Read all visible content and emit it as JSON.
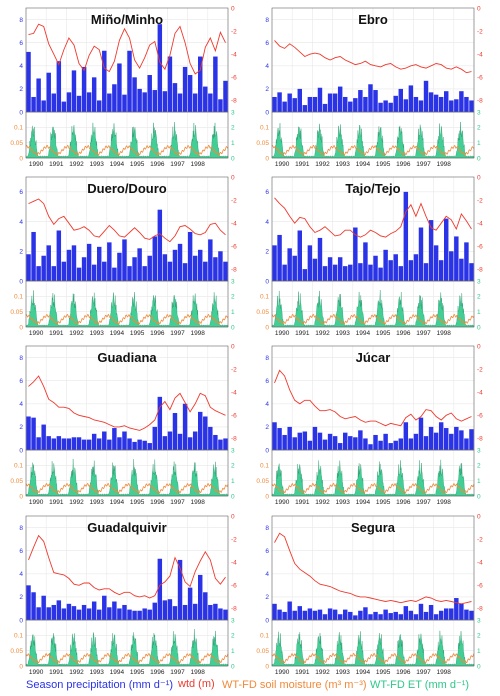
{
  "figure": {
    "colors": {
      "precipitation": "#2a33e6",
      "wtd": "#ee3a2e",
      "soil_moisture": "#f08a3a",
      "et": "#2ec98a",
      "et_dark": "#0f8a5a",
      "grid": "#e8e8e8"
    },
    "legend": {
      "precip": "Season precipitation (mm d⁻¹)",
      "wtd": "wtd (m)",
      "sm": "WT-FD soil moisture (m³ m⁻³)",
      "et": "WT-FD ET (mm d⁻¹)"
    },
    "x_ticks": [
      "1990",
      "1991",
      "1992",
      "1993",
      "1994",
      "1995",
      "1996",
      "1997",
      "1998"
    ]
  },
  "chart_data": [
    {
      "type": "bar",
      "title": "Miño/Minho",
      "precip": [
        5.2,
        1.3,
        2.9,
        1.0,
        3.4,
        1.6,
        4.4,
        0.9,
        1.7,
        3.6,
        1.4,
        3.9,
        1.7,
        3.0,
        1.0,
        5.3,
        1.6,
        2.4,
        4.2,
        1.5,
        5.3,
        3.0,
        2.0,
        1.7,
        3.2,
        1.9,
        7.6,
        1.8,
        4.8,
        2.5,
        1.6,
        3.9,
        3.2,
        1.6,
        4.8,
        2.2,
        1.6,
        4.8,
        1.1,
        2.7
      ],
      "wtd": [
        -2.3,
        -2.2,
        -1.4,
        -1.6,
        -3.1,
        -4.0,
        -4.9,
        -3.6,
        -2.6,
        -3.2,
        -4.8,
        -5.4,
        -4.1,
        -3.3,
        -3.6,
        -5.2,
        -5.5,
        -4.6,
        -2.8,
        -1.8,
        -2.6,
        -4.5,
        -5.2,
        -4.3,
        -3.2,
        -2.9,
        -4.7,
        -5.3,
        -4.1,
        -2.2,
        -1.6,
        -3.0,
        -4.8,
        -5.7,
        -5.4,
        -3.4,
        -2.6,
        -3.7,
        -2.1,
        -3.0
      ],
      "precip_ylim": [
        0,
        9
      ],
      "precip_ticks": [
        0,
        2,
        4,
        6,
        8
      ],
      "wtd_ylim": [
        -9,
        0
      ],
      "wtd_ticks": [
        0,
        -2,
        -4,
        -6,
        -8
      ],
      "sm_ylim": [
        0,
        0.15
      ],
      "sm_ticks": [
        0,
        0.05,
        0.1
      ],
      "et_ylim": [
        0,
        3
      ],
      "et_ticks": [
        0,
        1,
        2,
        3
      ]
    },
    {
      "type": "bar",
      "title": "Ebro",
      "precip": [
        1.3,
        1.7,
        0.9,
        1.6,
        1.2,
        2.0,
        0.6,
        1.3,
        1.3,
        2.1,
        0.7,
        1.6,
        1.6,
        2.2,
        1.3,
        0.9,
        1.2,
        1.9,
        1.3,
        2.4,
        1.9,
        0.8,
        1.0,
        0.8,
        1.4,
        2.0,
        1.1,
        2.3,
        1.3,
        1.0,
        2.7,
        1.7,
        1.5,
        1.3,
        1.8,
        1.0,
        1.1,
        1.8,
        1.3,
        1.0
      ],
      "wtd": [
        -2.8,
        -3.3,
        -3.5,
        -3.1,
        -3.4,
        -3.8,
        -4.2,
        -4.0,
        -3.9,
        -4.0,
        -4.3,
        -4.5,
        -4.3,
        -4.2,
        -4.5,
        -4.7,
        -4.9,
        -4.8,
        -4.6,
        -4.9,
        -5.0,
        -5.1,
        -4.9,
        -4.8,
        -5.1,
        -5.3,
        -5.2,
        -5.0,
        -4.9,
        -5.1,
        -5.2,
        -5.0,
        -4.8,
        -4.9,
        -5.2,
        -5.3,
        -5.1,
        -5.3,
        -5.6,
        -5.5
      ],
      "precip_ylim": [
        0,
        9
      ],
      "precip_ticks": [
        0,
        2,
        4,
        6,
        8
      ],
      "wtd_ylim": [
        -9,
        0
      ],
      "wtd_ticks": [
        0,
        -2,
        -4,
        -6,
        -8
      ],
      "sm_ylim": [
        0,
        0.15
      ],
      "sm_ticks": [
        0,
        0.05,
        0.1
      ],
      "et_ylim": [
        0,
        3
      ],
      "et_ticks": [
        0,
        1,
        2,
        3
      ]
    },
    {
      "type": "bar",
      "title": "Duero/Douro",
      "precip": [
        1.8,
        3.3,
        1.0,
        1.7,
        2.4,
        1.0,
        3.4,
        1.3,
        2.1,
        2.4,
        0.9,
        1.6,
        2.5,
        1.1,
        2.3,
        1.3,
        2.6,
        0.9,
        1.9,
        2.8,
        1.0,
        1.6,
        2.2,
        1.0,
        1.7,
        3.0,
        4.8,
        1.8,
        1.3,
        2.1,
        2.5,
        1.2,
        3.3,
        1.7,
        2.1,
        1.3,
        2.8,
        1.6,
        2.0,
        1.3
      ],
      "wtd": [
        -2.3,
        -2.1,
        -1.9,
        -2.3,
        -3.4,
        -4.1,
        -3.6,
        -3.4,
        -4.0,
        -4.6,
        -4.5,
        -4.3,
        -4.6,
        -5.1,
        -5.2,
        -4.7,
        -4.2,
        -4.6,
        -5.1,
        -5.2,
        -4.8,
        -4.4,
        -4.8,
        -5.3,
        -5.4,
        -5.1,
        -4.9,
        -5.3,
        -5.6,
        -5.1,
        -4.3,
        -4.2,
        -4.5,
        -4.9,
        -5.0,
        -4.8,
        -4.1,
        -4.0,
        -4.6,
        -5.0
      ],
      "precip_ylim": [
        0,
        7
      ],
      "precip_ticks": [
        0,
        2,
        4,
        6
      ],
      "wtd_ylim": [
        -9,
        0
      ],
      "wtd_ticks": [
        0,
        -2,
        -4,
        -6,
        -8
      ],
      "sm_ylim": [
        0,
        0.15
      ],
      "sm_ticks": [
        0,
        0.05,
        0.1
      ],
      "et_ylim": [
        0,
        3
      ],
      "et_ticks": [
        0,
        1,
        2,
        3
      ]
    },
    {
      "type": "bar",
      "title": "Tajo/Tejo",
      "precip": [
        2.4,
        3.1,
        1.1,
        2.2,
        1.7,
        3.4,
        0.8,
        2.4,
        1.5,
        2.9,
        1.0,
        1.6,
        1.1,
        1.6,
        1.0,
        1.1,
        3.6,
        1.2,
        2.6,
        1.1,
        1.7,
        0.9,
        2.1,
        1.4,
        1.8,
        1.0,
        6.0,
        1.4,
        1.8,
        3.6,
        1.2,
        4.1,
        2.4,
        1.4,
        4.2,
        2.0,
        3.0,
        1.5,
        2.6,
        1.2
      ],
      "wtd": [
        -1.8,
        -2.3,
        -2.7,
        -3.4,
        -4.0,
        -3.5,
        -3.6,
        -4.3,
        -4.8,
        -4.6,
        -4.3,
        -4.7,
        -5.1,
        -5.0,
        -4.6,
        -4.6,
        -5.0,
        -5.2,
        -5.0,
        -4.6,
        -4.8,
        -5.1,
        -5.2,
        -4.9,
        -4.7,
        -4.3,
        -3.0,
        -2.4,
        -3.4,
        -2.3,
        -3.4,
        -4.4,
        -4.6,
        -4.0,
        -3.4,
        -3.7,
        -4.5,
        -3.2,
        -3.8,
        -4.5
      ],
      "precip_ylim": [
        0,
        7
      ],
      "precip_ticks": [
        0,
        2,
        4,
        6
      ],
      "wtd_ylim": [
        -9,
        0
      ],
      "wtd_ticks": [
        0,
        -2,
        -4,
        -6,
        -8
      ],
      "sm_ylim": [
        0,
        0.15
      ],
      "sm_ticks": [
        0,
        0.05,
        0.1
      ],
      "et_ylim": [
        0,
        3
      ],
      "et_ticks": [
        0,
        1,
        2,
        3
      ]
    },
    {
      "type": "bar",
      "title": "Guadiana",
      "precip": [
        2.9,
        2.8,
        1.1,
        2.2,
        1.2,
        1.0,
        1.2,
        1.0,
        1.0,
        1.1,
        1.1,
        0.9,
        0.9,
        1.4,
        1.0,
        1.6,
        0.9,
        1.9,
        1.1,
        1.6,
        1.0,
        0.7,
        0.9,
        0.8,
        0.6,
        2.0,
        4.6,
        1.2,
        1.6,
        3.2,
        1.4,
        4.0,
        1.1,
        1.6,
        3.3,
        2.9,
        2.0,
        1.3,
        0.9,
        1.0
      ],
      "wtd": [
        -3.5,
        -3.1,
        -2.6,
        -3.5,
        -4.6,
        -4.9,
        -5.3,
        -5.3,
        -5.4,
        -5.8,
        -6.0,
        -6.1,
        -6.2,
        -6.4,
        -6.5,
        -6.6,
        -6.8,
        -7.0,
        -7.0,
        -6.9,
        -7.1,
        -7.2,
        -7.3,
        -7.1,
        -6.8,
        -6.4,
        -5.3,
        -4.8,
        -5.5,
        -4.5,
        -4.1,
        -4.9,
        -5.7,
        -5.0,
        -4.1,
        -4.3,
        -5.3,
        -5.6,
        -5.8,
        -6.0
      ],
      "precip_ylim": [
        0,
        9
      ],
      "precip_ticks": [
        0,
        2,
        4,
        6,
        8
      ],
      "wtd_ylim": [
        -9,
        0
      ],
      "wtd_ticks": [
        0,
        -2,
        -4,
        -6,
        -8
      ],
      "sm_ylim": [
        0,
        0.15
      ],
      "sm_ticks": [
        0,
        0.05,
        0.1
      ],
      "et_ylim": [
        0,
        3
      ],
      "et_ticks": [
        0,
        1,
        2,
        3
      ]
    },
    {
      "type": "bar",
      "title": "Júcar",
      "precip": [
        2.4,
        1.9,
        1.3,
        2.0,
        1.1,
        1.5,
        1.6,
        0.8,
        2.0,
        1.5,
        0.9,
        1.4,
        1.2,
        0.6,
        1.5,
        1.2,
        1.1,
        1.7,
        1.0,
        0.5,
        1.3,
        0.8,
        1.4,
        0.6,
        0.8,
        1.0,
        2.4,
        1.0,
        1.4,
        2.8,
        1.2,
        2.0,
        1.5,
        2.4,
        1.9,
        1.4,
        2.0,
        1.7,
        1.0,
        1.8
      ],
      "wtd": [
        -3.2,
        -2.1,
        -2.6,
        -3.8,
        -4.7,
        -5.0,
        -4.7,
        -4.7,
        -5.2,
        -5.6,
        -5.6,
        -5.5,
        -5.7,
        -6.1,
        -6.3,
        -6.2,
        -6.1,
        -6.4,
        -6.6,
        -6.5,
        -6.5,
        -6.7,
        -6.9,
        -6.7,
        -6.8,
        -6.9,
        -6.2,
        -5.9,
        -6.4,
        -6.1,
        -5.5,
        -5.6,
        -6.1,
        -6.4,
        -6.0,
        -5.8,
        -6.3,
        -6.5,
        -6.3,
        -6.1
      ],
      "precip_ylim": [
        0,
        9
      ],
      "precip_ticks": [
        0,
        2,
        4,
        6,
        8
      ],
      "wtd_ylim": [
        -9,
        0
      ],
      "wtd_ticks": [
        0,
        -2,
        -4,
        -6,
        -8
      ],
      "sm_ylim": [
        0,
        0.15
      ],
      "sm_ticks": [
        0,
        0.05,
        0.1
      ],
      "et_ylim": [
        0,
        3
      ],
      "et_ticks": [
        0,
        1,
        2,
        3
      ]
    },
    {
      "type": "bar",
      "title": "Guadalquivir",
      "precip": [
        3.0,
        2.4,
        1.1,
        2.1,
        1.1,
        1.3,
        1.7,
        1.0,
        1.4,
        1.2,
        0.9,
        1.3,
        1.0,
        1.6,
        0.9,
        2.1,
        1.1,
        1.6,
        1.0,
        1.3,
        0.9,
        0.8,
        0.8,
        1.0,
        0.9,
        1.5,
        5.3,
        1.7,
        1.8,
        1.2,
        5.2,
        1.3,
        2.8,
        1.4,
        3.9,
        2.4,
        1.3,
        1.4,
        1.0,
        0.9
      ],
      "wtd": [
        -3.8,
        -2.7,
        -1.7,
        -2.2,
        -3.6,
        -4.9,
        -5.0,
        -5.1,
        -5.4,
        -5.9,
        -6.0,
        -5.8,
        -5.8,
        -6.2,
        -6.4,
        -6.3,
        -6.3,
        -6.6,
        -6.8,
        -6.6,
        -6.6,
        -6.9,
        -7.0,
        -6.9,
        -7.1,
        -6.9,
        -6.0,
        -5.7,
        -5.2,
        -3.6,
        -4.5,
        -5.7,
        -6.1,
        -4.8,
        -3.9,
        -3.1,
        -3.8,
        -5.4,
        -5.9,
        -5.3
      ],
      "precip_ylim": [
        0,
        9
      ],
      "precip_ticks": [
        0,
        2,
        4,
        6,
        8
      ],
      "wtd_ylim": [
        -9,
        0
      ],
      "wtd_ticks": [
        0,
        -2,
        -4,
        -6,
        -8
      ],
      "sm_ylim": [
        0,
        0.15
      ],
      "sm_ticks": [
        0,
        0.05,
        0.1
      ],
      "et_ylim": [
        0,
        3
      ],
      "et_ticks": [
        0,
        1,
        2,
        3
      ]
    },
    {
      "type": "bar",
      "title": "Segura",
      "precip": [
        1.4,
        0.9,
        0.7,
        1.6,
        0.8,
        1.2,
        0.8,
        1.0,
        0.8,
        0.9,
        0.5,
        1.0,
        0.9,
        0.5,
        0.9,
        0.7,
        0.4,
        0.8,
        1.1,
        0.5,
        0.7,
        0.5,
        0.9,
        0.6,
        0.7,
        0.5,
        1.2,
        0.8,
        0.5,
        1.4,
        0.7,
        1.3,
        0.5,
        0.8,
        1.0,
        1.0,
        1.9,
        1.4,
        0.9,
        0.8
      ],
      "wtd": [
        -2.3,
        -1.5,
        -1.8,
        -3.0,
        -4.1,
        -4.6,
        -4.9,
        -5.2,
        -5.6,
        -5.9,
        -6.0,
        -6.1,
        -6.3,
        -6.5,
        -6.6,
        -6.7,
        -6.9,
        -7.0,
        -7.0,
        -7.1,
        -7.2,
        -7.3,
        -7.4,
        -7.3,
        -7.4,
        -7.5,
        -7.4,
        -7.3,
        -7.4,
        -7.2,
        -7.0,
        -7.1,
        -7.3,
        -7.4,
        -7.3,
        -7.4,
        -7.5,
        -7.6,
        -7.5,
        -7.4
      ],
      "precip_ylim": [
        0,
        9
      ],
      "precip_ticks": [
        0,
        2,
        4,
        6,
        8
      ],
      "wtd_ylim": [
        -9,
        0
      ],
      "wtd_ticks": [
        0,
        -2,
        -4,
        -6,
        -8
      ],
      "sm_ylim": [
        0,
        0.15
      ],
      "sm_ticks": [
        0,
        0.05,
        0.1
      ],
      "et_ylim": [
        0,
        3
      ],
      "et_ticks": [
        0,
        1,
        2,
        3
      ]
    }
  ]
}
